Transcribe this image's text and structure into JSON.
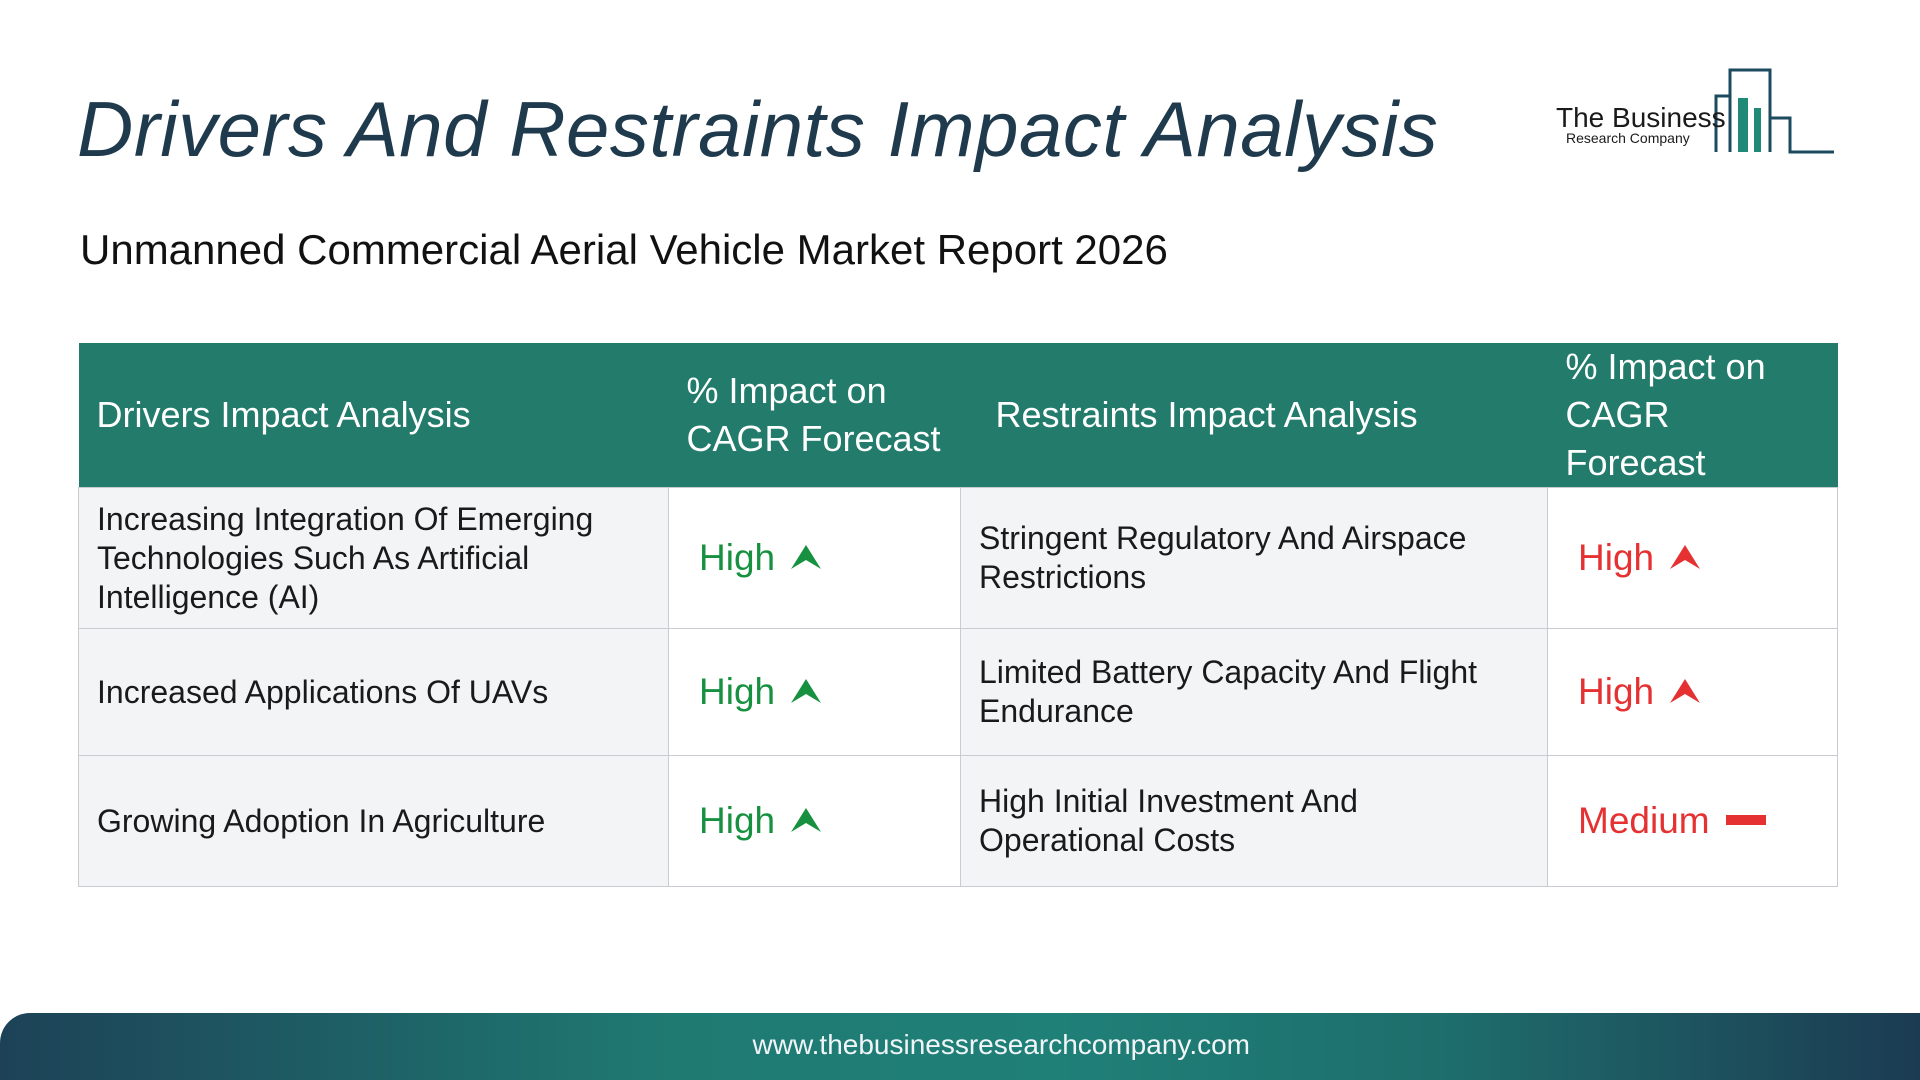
{
  "title": "Drivers And Restraints Impact Analysis",
  "logo": {
    "name": "The Business",
    "sub": "Research Company",
    "color": "#1f8a76"
  },
  "subtitle": "Unmanned Commercial Aerial Vehicle Market Report 2026",
  "table": {
    "headers": {
      "drivers": "Drivers Impact Analysis",
      "drivers_impact": "% Impact on CAGR Forecast",
      "restraints": "Restraints Impact Analysis",
      "restraints_impact": "% Impact on CAGR Forecast"
    },
    "rows": [
      {
        "driver": "Increasing Integration Of Emerging Technologies Such As Artificial Intelligence (AI)",
        "driver_impact": "High",
        "driver_impact_icon": "arrow-up-icon",
        "restraint": "Stringent Regulatory And Airspace Restrictions",
        "restraint_impact": "High",
        "restraint_impact_icon": "arrow-up-icon"
      },
      {
        "driver": "Increased Applications Of UAVs",
        "driver_impact": "High",
        "driver_impact_icon": "arrow-up-icon",
        "restraint": "Limited Battery Capacity And Flight Endurance",
        "restraint_impact": "High",
        "restraint_impact_icon": "arrow-up-icon"
      },
      {
        "driver": "Growing Adoption In Agriculture",
        "driver_impact": "High",
        "driver_impact_icon": "arrow-up-icon",
        "restraint": "High Initial Investment And Operational Costs",
        "restraint_impact": "Medium",
        "restraint_impact_icon": "dash-icon"
      }
    ]
  },
  "colors": {
    "header_bg": "#237b6b",
    "driver_impact": "#179140",
    "restraint_impact": "#e53131"
  },
  "footer": {
    "url": "www.thebusinessresearchcompany.com"
  }
}
